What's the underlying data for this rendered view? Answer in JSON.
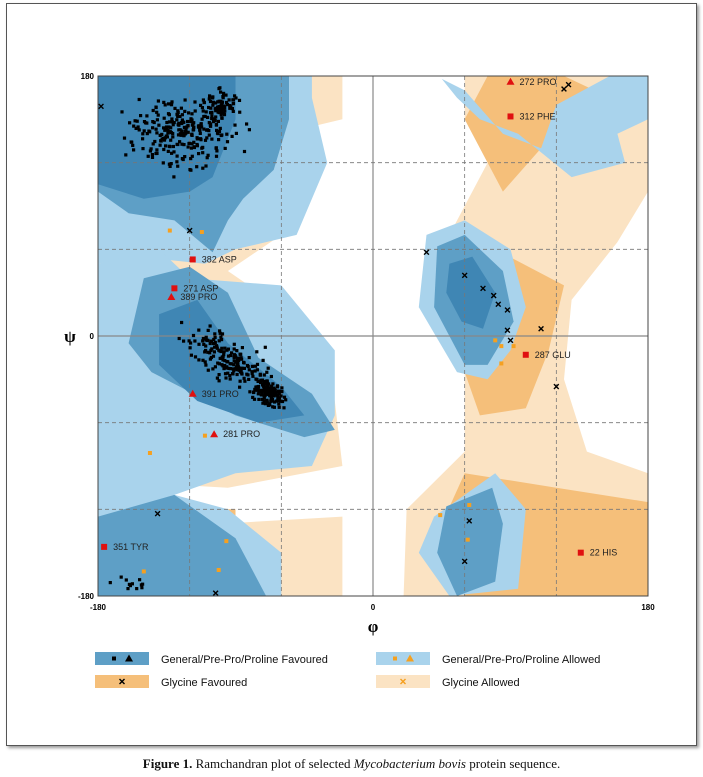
{
  "chart_data": {
    "type": "scatter",
    "xlabel": "φ",
    "ylabel": "ψ",
    "xlim": [
      -180,
      180
    ],
    "ylim": [
      -180,
      180
    ],
    "x_ticks": [
      "-180",
      "0",
      "180"
    ],
    "y_ticks": [
      "180",
      "0",
      "-180"
    ],
    "colors": {
      "general_favoured": "#5e9fc6",
      "general_allowed": "#a9d3ec",
      "general_core": "#3f86b4",
      "glycine_favoured": "#f5bf7a",
      "glycine_allowed": "#fbe3c3",
      "point_normal": "#000000",
      "point_outlier": "#e01010",
      "point_glycine_allowed": "#f5a020"
    },
    "outliers": [
      {
        "phi": -118,
        "psi": 53,
        "label": "382 ASP",
        "marker": "square"
      },
      {
        "phi": -130,
        "psi": 33,
        "label": "271 ASP",
        "marker": "square"
      },
      {
        "phi": -132,
        "psi": 27,
        "label": "389 PRO",
        "marker": "triangle"
      },
      {
        "phi": -118,
        "psi": -40,
        "label": "391 PRO",
        "marker": "triangle"
      },
      {
        "phi": -104,
        "psi": -68,
        "label": "281 PRO",
        "marker": "triangle"
      },
      {
        "phi": -176,
        "psi": -146,
        "label": "351 TYR",
        "marker": "square"
      },
      {
        "phi": 90,
        "psi": 176,
        "label": "272 PRO",
        "marker": "triangle"
      },
      {
        "phi": 90,
        "psi": 152,
        "label": "312 PHE",
        "marker": "square"
      },
      {
        "phi": 100,
        "psi": -13,
        "label": "287 GLU",
        "marker": "square"
      },
      {
        "phi": 136,
        "psi": -150,
        "label": "22 HIS",
        "marker": "square"
      }
    ],
    "glycine_allowed_points": [
      {
        "phi": -133,
        "psi": 73
      },
      {
        "phi": -112,
        "psi": 72
      },
      {
        "phi": -146,
        "psi": -81
      },
      {
        "phi": -110,
        "psi": -69
      },
      {
        "phi": -96,
        "psi": -142
      },
      {
        "phi": -150,
        "psi": -163
      },
      {
        "phi": -101,
        "psi": -162
      },
      {
        "phi": 44,
        "psi": -124
      },
      {
        "phi": 63,
        "psi": -117
      },
      {
        "phi": 62,
        "psi": -141
      },
      {
        "phi": 80,
        "psi": -3
      },
      {
        "phi": 84,
        "psi": -7
      },
      {
        "phi": 92,
        "psi": -7
      },
      {
        "phi": 84,
        "psi": -19
      }
    ],
    "glycine_favoured_points": [
      {
        "phi": -178,
        "psi": 159
      },
      {
        "phi": -120,
        "psi": 73
      },
      {
        "phi": -141,
        "psi": -123
      },
      {
        "phi": -103,
        "psi": -178
      },
      {
        "phi": 35,
        "psi": 58
      },
      {
        "phi": 60,
        "psi": 42
      },
      {
        "phi": 72,
        "psi": 33
      },
      {
        "phi": 79,
        "psi": 28
      },
      {
        "phi": 82,
        "psi": 22
      },
      {
        "phi": 88,
        "psi": 18
      },
      {
        "phi": 88,
        "psi": 4
      },
      {
        "phi": 90,
        "psi": -3
      },
      {
        "phi": 110,
        "psi": 5
      },
      {
        "phi": 120,
        "psi": -35
      },
      {
        "phi": 63,
        "psi": -128
      },
      {
        "phi": 60,
        "psi": -156
      },
      {
        "phi": 128,
        "psi": 174
      },
      {
        "phi": 125,
        "psi": 171
      }
    ]
  },
  "legend": [
    {
      "label": "General/Pre-Pro/Proline Favoured",
      "swatch": "#5e9fc6",
      "mark": "square-triangle",
      "mark_color": "#000000"
    },
    {
      "label": "General/Pre-Pro/Proline Allowed",
      "swatch": "#a9d3ec",
      "mark": "square-triangle",
      "mark_color": "#f5a020"
    },
    {
      "label": "Glycine Favoured",
      "swatch": "#f5bf7a",
      "mark": "cross",
      "mark_color": "#000000"
    },
    {
      "label": "Glycine Allowed",
      "swatch": "#fbe3c3",
      "mark": "cross",
      "mark_color": "#f5a020"
    }
  ],
  "caption": {
    "prefix": "Figure 1.",
    "text_before": " Ramchandran plot of selected ",
    "species": "Mycobacterium bovis",
    "text_after": " protein sequence."
  }
}
